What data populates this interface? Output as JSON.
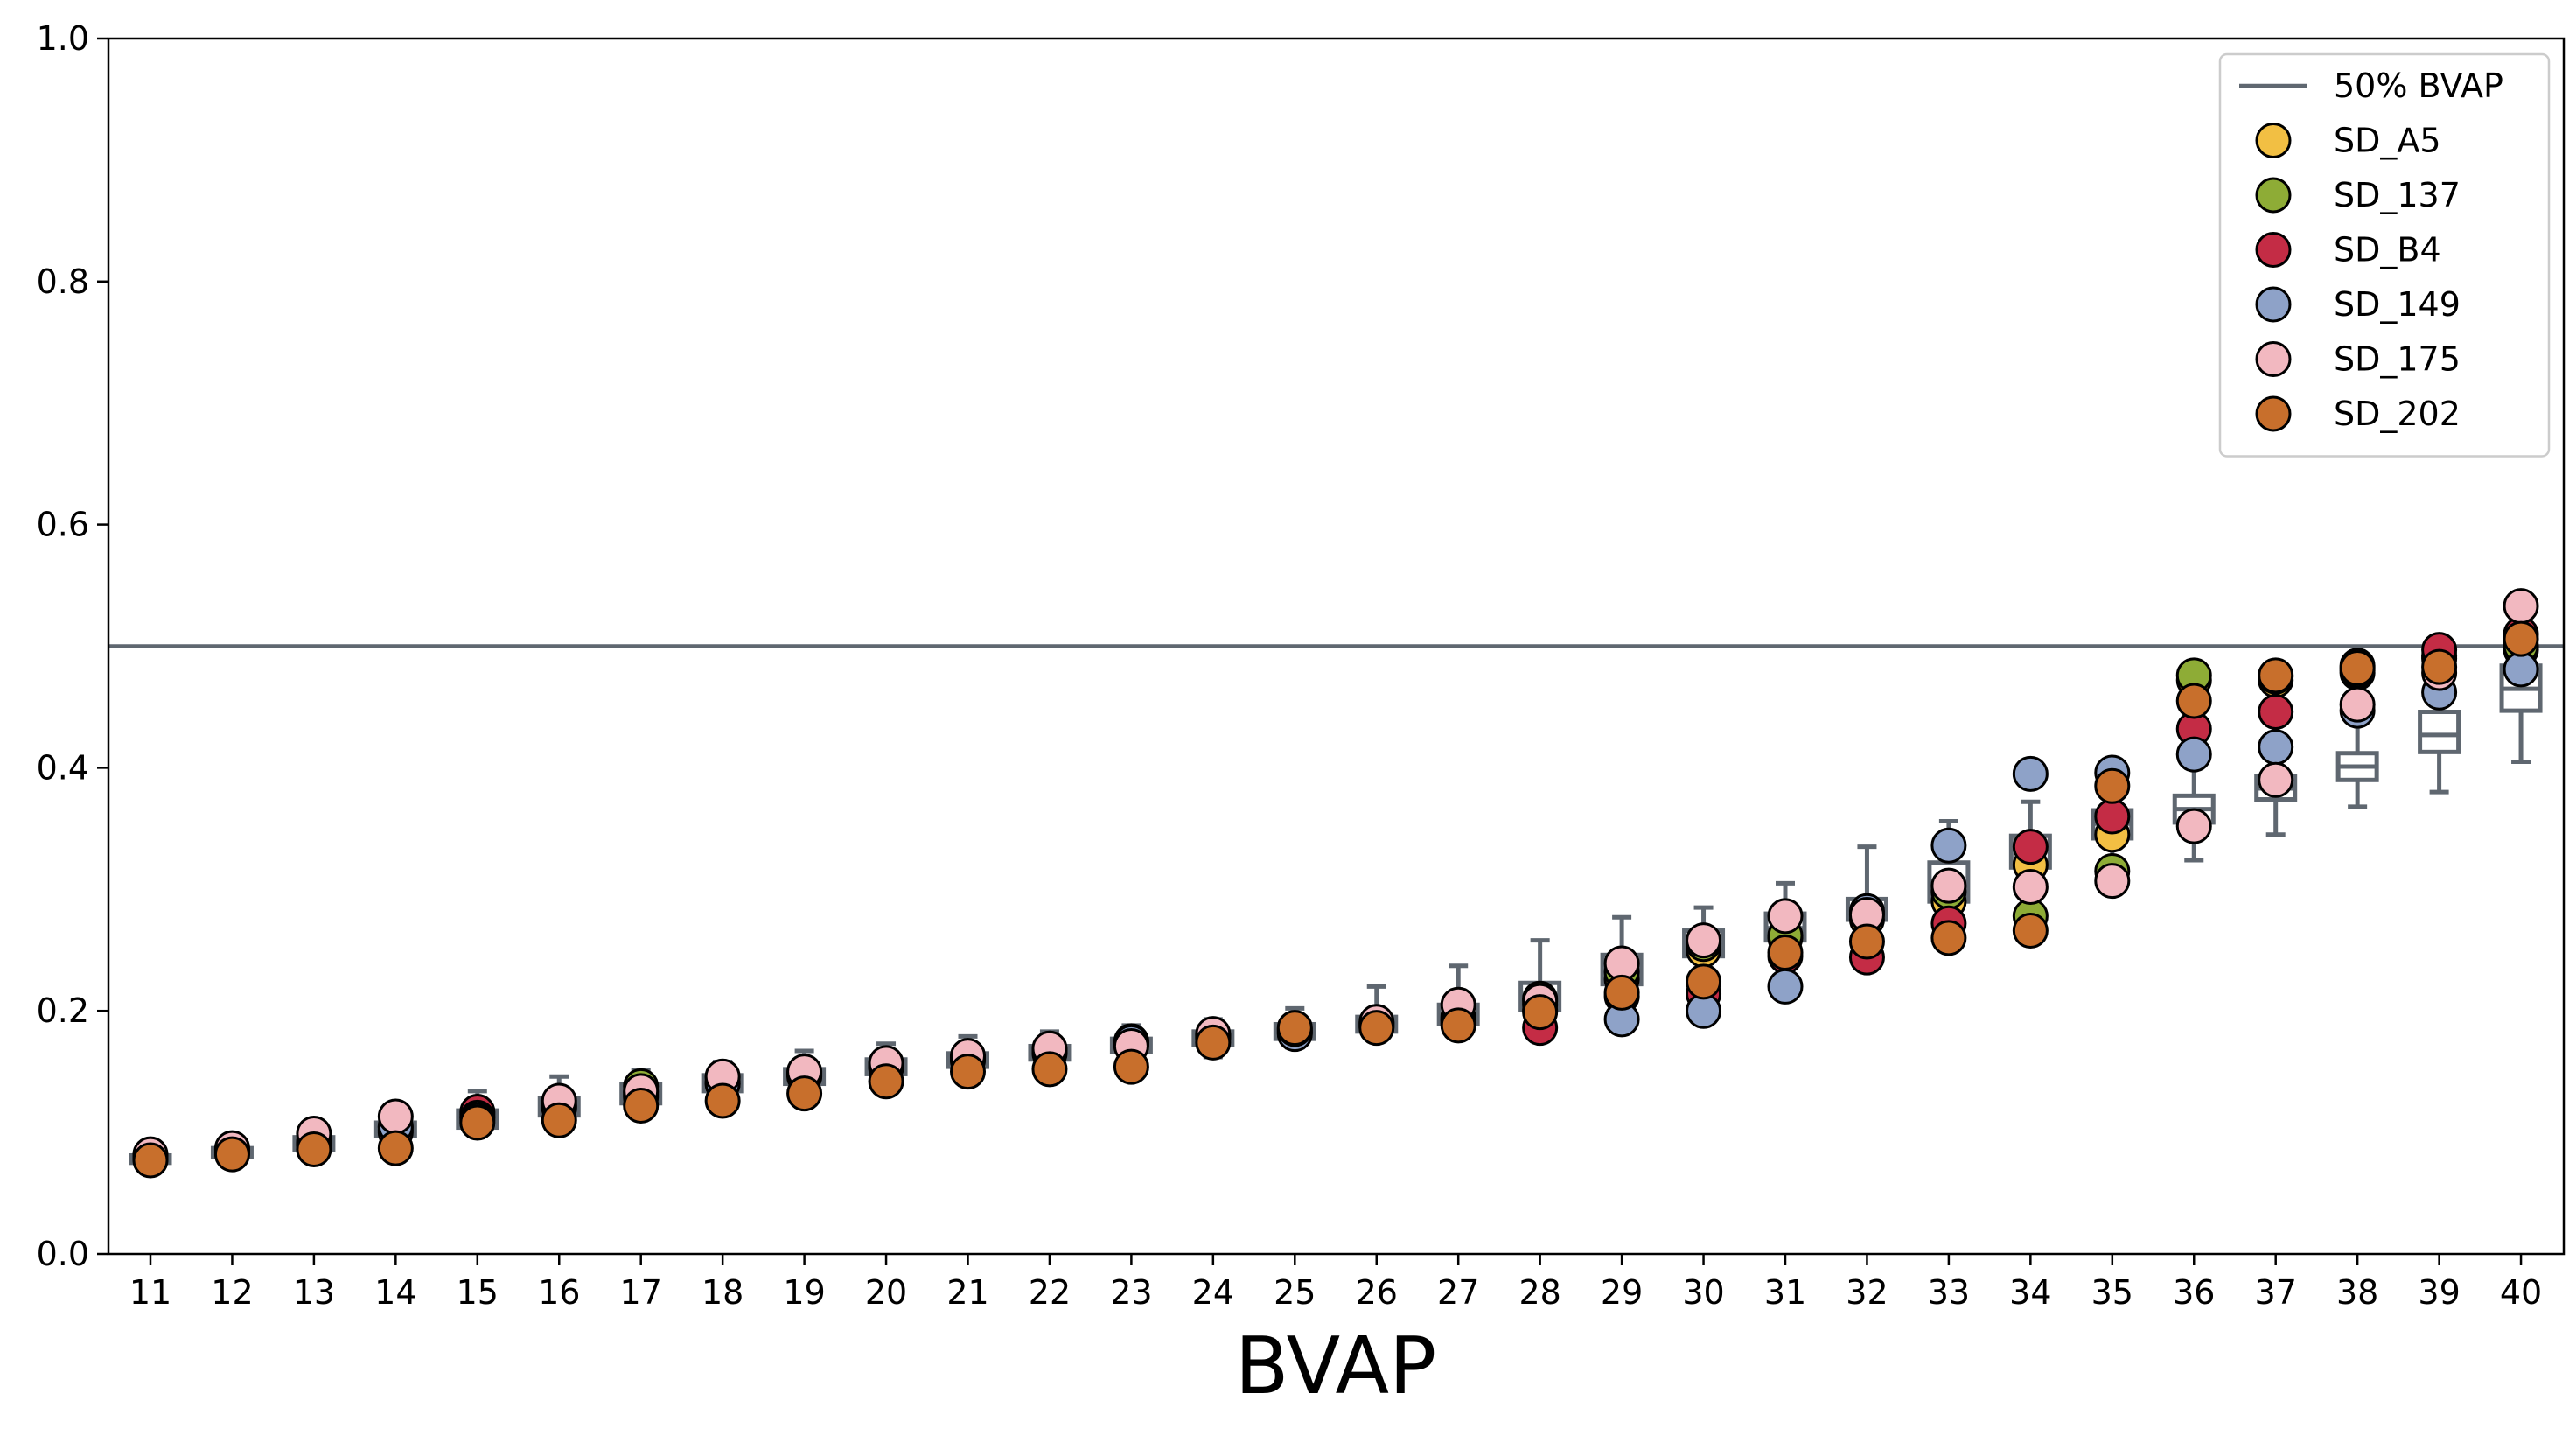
{
  "chart_data": {
    "type": "scatter",
    "xlabel": "BVAP",
    "ylabel": "",
    "title": "",
    "xticks": [
      "11",
      "12",
      "13",
      "14",
      "15",
      "16",
      "17",
      "18",
      "19",
      "20",
      "21",
      "22",
      "23",
      "24",
      "25",
      "26",
      "27",
      "28",
      "29",
      "30",
      "31",
      "32",
      "33",
      "34",
      "35",
      "36",
      "37",
      "38",
      "39",
      "40"
    ],
    "ylim": [
      0.0,
      1.0
    ],
    "yticks": [
      "0.0",
      "0.2",
      "0.4",
      "0.6",
      "0.8",
      "1.0"
    ],
    "legend_position": "top-right",
    "reference_line": {
      "name": "50% BVAP",
      "y": 0.5,
      "color": "#5f6770"
    },
    "boxplots": [
      {
        "x": "11",
        "whislo": 0.072,
        "q1": 0.075,
        "med": 0.078,
        "q3": 0.081,
        "whishi": 0.085
      },
      {
        "x": "12",
        "whislo": 0.077,
        "q1": 0.08,
        "med": 0.084,
        "q3": 0.087,
        "whishi": 0.091
      },
      {
        "x": "13",
        "whislo": 0.082,
        "q1": 0.086,
        "med": 0.092,
        "q3": 0.096,
        "whishi": 0.103
      },
      {
        "x": "14",
        "whislo": 0.09,
        "q1": 0.097,
        "med": 0.103,
        "q3": 0.108,
        "whishi": 0.117
      },
      {
        "x": "15",
        "whislo": 0.097,
        "q1": 0.104,
        "med": 0.112,
        "q3": 0.118,
        "whishi": 0.134
      },
      {
        "x": "16",
        "whislo": 0.104,
        "q1": 0.114,
        "med": 0.121,
        "q3": 0.128,
        "whishi": 0.146
      },
      {
        "x": "17",
        "whislo": 0.115,
        "q1": 0.124,
        "med": 0.132,
        "q3": 0.14,
        "whishi": 0.151
      },
      {
        "x": "18",
        "whislo": 0.124,
        "q1": 0.134,
        "med": 0.141,
        "q3": 0.147,
        "whishi": 0.158
      },
      {
        "x": "19",
        "whislo": 0.13,
        "q1": 0.14,
        "med": 0.147,
        "q3": 0.152,
        "whishi": 0.167
      },
      {
        "x": "20",
        "whislo": 0.136,
        "q1": 0.148,
        "med": 0.154,
        "q3": 0.16,
        "whishi": 0.173
      },
      {
        "x": "21",
        "whislo": 0.143,
        "q1": 0.154,
        "med": 0.16,
        "q3": 0.165,
        "whishi": 0.179
      },
      {
        "x": "22",
        "whislo": 0.148,
        "q1": 0.16,
        "med": 0.166,
        "q3": 0.171,
        "whishi": 0.183
      },
      {
        "x": "23",
        "whislo": 0.153,
        "q1": 0.166,
        "med": 0.172,
        "q3": 0.177,
        "whishi": 0.188
      },
      {
        "x": "24",
        "whislo": 0.162,
        "q1": 0.172,
        "med": 0.177,
        "q3": 0.183,
        "whishi": 0.193
      },
      {
        "x": "25",
        "whislo": 0.17,
        "q1": 0.177,
        "med": 0.183,
        "q3": 0.189,
        "whishi": 0.202
      },
      {
        "x": "26",
        "whislo": 0.176,
        "q1": 0.183,
        "med": 0.189,
        "q3": 0.195,
        "whishi": 0.22
      },
      {
        "x": "27",
        "whislo": 0.18,
        "q1": 0.189,
        "med": 0.196,
        "q3": 0.205,
        "whishi": 0.237
      },
      {
        "x": "28",
        "whislo": 0.187,
        "q1": 0.201,
        "med": 0.212,
        "q3": 0.223,
        "whishi": 0.258
      },
      {
        "x": "29",
        "whislo": 0.197,
        "q1": 0.222,
        "med": 0.233,
        "q3": 0.246,
        "whishi": 0.277
      },
      {
        "x": "30",
        "whislo": 0.213,
        "q1": 0.245,
        "med": 0.256,
        "q3": 0.266,
        "whishi": 0.285
      },
      {
        "x": "31",
        "whislo": 0.225,
        "q1": 0.258,
        "med": 0.268,
        "q3": 0.28,
        "whishi": 0.305
      },
      {
        "x": "32",
        "whislo": 0.255,
        "q1": 0.275,
        "med": 0.284,
        "q3": 0.292,
        "whishi": 0.335
      },
      {
        "x": "33",
        "whislo": 0.265,
        "q1": 0.29,
        "med": 0.305,
        "q3": 0.322,
        "whishi": 0.356
      },
      {
        "x": "34",
        "whislo": 0.29,
        "q1": 0.318,
        "med": 0.332,
        "q3": 0.344,
        "whishi": 0.372
      },
      {
        "x": "35",
        "whislo": 0.315,
        "q1": 0.342,
        "med": 0.354,
        "q3": 0.365,
        "whishi": 0.395
      },
      {
        "x": "36",
        "whislo": 0.324,
        "q1": 0.355,
        "med": 0.366,
        "q3": 0.377,
        "whishi": 0.409
      },
      {
        "x": "37",
        "whislo": 0.345,
        "q1": 0.374,
        "med": 0.383,
        "q3": 0.393,
        "whishi": 0.423
      },
      {
        "x": "38",
        "whislo": 0.368,
        "q1": 0.39,
        "med": 0.401,
        "q3": 0.412,
        "whishi": 0.445
      },
      {
        "x": "39",
        "whislo": 0.38,
        "q1": 0.413,
        "med": 0.427,
        "q3": 0.446,
        "whishi": 0.485
      },
      {
        "x": "40",
        "whislo": 0.405,
        "q1": 0.447,
        "med": 0.465,
        "q3": 0.484,
        "whishi": 0.525
      }
    ],
    "series": [
      {
        "name": "SD_A5",
        "color": "#f2bf43",
        "values": [
          0.08,
          0.085,
          0.09,
          0.102,
          0.113,
          0.121,
          0.131,
          0.14,
          0.146,
          0.153,
          0.159,
          0.165,
          0.172,
          0.177,
          0.182,
          0.188,
          0.193,
          0.205,
          0.226,
          0.25,
          0.26,
          0.275,
          0.29,
          0.32,
          0.345,
          0.472,
          0.472,
          0.478,
          0.49,
          0.497
        ]
      },
      {
        "name": "SD_137",
        "color": "#8eac36",
        "values": [
          0.081,
          0.086,
          0.091,
          0.104,
          0.115,
          0.122,
          0.138,
          0.142,
          0.147,
          0.154,
          0.16,
          0.166,
          0.173,
          0.178,
          0.183,
          0.189,
          0.195,
          0.21,
          0.232,
          0.255,
          0.262,
          0.28,
          0.298,
          0.278,
          0.315,
          0.476,
          0.475,
          0.48,
          0.492,
          0.5
        ]
      },
      {
        "name": "SD_B4",
        "color": "#c42c45",
        "values": [
          0.078,
          0.083,
          0.089,
          0.1,
          0.117,
          0.124,
          0.133,
          0.145,
          0.149,
          0.156,
          0.161,
          0.168,
          0.175,
          0.18,
          0.184,
          0.19,
          0.192,
          0.186,
          0.212,
          0.214,
          0.245,
          0.244,
          0.272,
          0.335,
          0.36,
          0.432,
          0.446,
          0.484,
          0.497,
          0.51
        ]
      },
      {
        "name": "SD_149",
        "color": "#8ea2c8",
        "values": [
          0.079,
          0.084,
          0.092,
          0.105,
          0.112,
          0.12,
          0.129,
          0.14,
          0.148,
          0.155,
          0.162,
          0.167,
          0.174,
          0.179,
          0.181,
          0.187,
          0.19,
          0.2,
          0.193,
          0.2,
          0.22,
          0.282,
          0.336,
          0.395,
          0.396,
          0.411,
          0.417,
          0.447,
          0.462,
          0.481
        ]
      },
      {
        "name": "SD_175",
        "color": "#f2b8c0",
        "values": [
          0.082,
          0.087,
          0.099,
          0.113,
          0.11,
          0.126,
          0.134,
          0.146,
          0.15,
          0.157,
          0.163,
          0.169,
          0.171,
          0.181,
          0.185,
          0.191,
          0.205,
          0.208,
          0.239,
          0.258,
          0.278,
          0.279,
          0.303,
          0.302,
          0.307,
          0.352,
          0.39,
          0.452,
          0.478,
          0.533
        ]
      },
      {
        "name": "SD_202",
        "color": "#c86f2c",
        "values": [
          0.077,
          0.082,
          0.086,
          0.087,
          0.108,
          0.11,
          0.122,
          0.126,
          0.132,
          0.142,
          0.15,
          0.152,
          0.154,
          0.174,
          0.186,
          0.186,
          0.188,
          0.199,
          0.215,
          0.224,
          0.248,
          0.257,
          0.26,
          0.266,
          0.385,
          0.455,
          0.476,
          0.482,
          0.483,
          0.506
        ]
      }
    ]
  }
}
